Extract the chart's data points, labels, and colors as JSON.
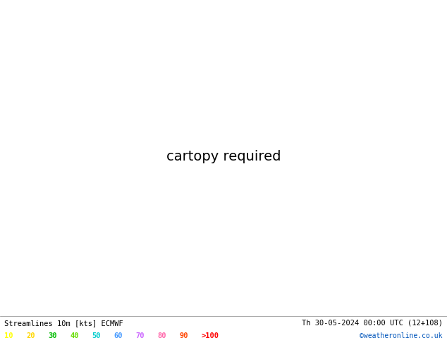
{
  "title_left": "Streamlines 10m [kts] ECMWF",
  "title_right": "Th 30-05-2024 00:00 UTC (12+108)",
  "credit": "©weatheronline.co.uk",
  "legend_labels": [
    "10",
    "20",
    "30",
    "40",
    "50",
    "60",
    "70",
    "80",
    "90",
    ">100"
  ],
  "legend_colors": [
    "#ffff00",
    "#ffd700",
    "#32cd32",
    "#90ee90",
    "#00ced1",
    "#1e90ff",
    "#da70d6",
    "#ff69b4",
    "#ff4500",
    "#dc143c"
  ],
  "background_color": "#dcdcdc",
  "sea_color": "#dcdcdc",
  "land_color": "#ccffaa",
  "coast_color": "#000000",
  "border_color": "#000033",
  "text_color": "#000000",
  "bottom_bar_color": "#ffffff",
  "figsize": [
    6.34,
    4.9
  ],
  "dpi": 100,
  "extent": [
    -12,
    35,
    53,
    73
  ],
  "streamline_gray": "#aaaaaa",
  "streamline_yellow": "#ffcc00",
  "streamline_green": "#88cc44",
  "streamline_orange": "#ff8800"
}
